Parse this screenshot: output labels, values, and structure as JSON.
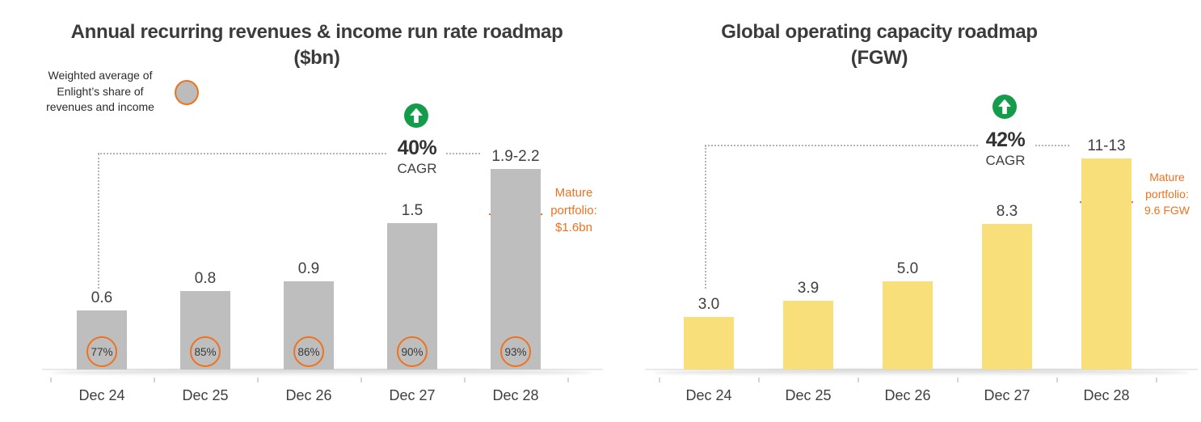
{
  "legend": {
    "lines": [
      "Weighted average of",
      "Enlight’s share of",
      "revenues and income"
    ],
    "swatch_icon": "gray-circle-orange-ring-icon"
  },
  "colors": {
    "orange": "#ee7220",
    "green": "#149c4a",
    "gray_bar": "#bebebe",
    "yellow_bar": "#f8df7a",
    "text": "#3f3f3f"
  },
  "chart_data": [
    {
      "type": "bar",
      "title": "Annual recurring revenues & income run rate roadmap",
      "subtitle": "($bn)",
      "categories": [
        "Dec 24",
        "Dec 25",
        "Dec 26",
        "Dec 27",
        "Dec 28"
      ],
      "values": [
        0.6,
        0.8,
        0.9,
        1.5,
        2.05
      ],
      "value_labels": [
        "0.6",
        "0.8",
        "0.9",
        "1.5",
        "1.9-2.2"
      ],
      "share_circles": [
        "77%",
        "85%",
        "86%",
        "90%",
        "93%"
      ],
      "bar_color": "#bebebe",
      "ylim": [
        0,
        2.3
      ],
      "grid": false,
      "cagr": {
        "value": "40%",
        "label": "CAGR",
        "icon": "green-up-arrow-icon"
      },
      "mature_portfolio": {
        "lines": [
          "Mature",
          "portfolio:",
          "$1.6bn"
        ],
        "value": 1.6
      }
    },
    {
      "type": "bar",
      "title": "Global operating capacity roadmap",
      "subtitle": "(FGW)",
      "categories": [
        "Dec 24",
        "Dec 25",
        "Dec 26",
        "Dec 27",
        "Dec 28"
      ],
      "values": [
        3.0,
        3.9,
        5.0,
        8.3,
        12.0
      ],
      "value_labels": [
        "3.0",
        "3.9",
        "5.0",
        "8.3",
        "11-13"
      ],
      "share_circles": null,
      "bar_color": "#f8df7a",
      "ylim": [
        0,
        12.8
      ],
      "grid": false,
      "cagr": {
        "value": "42%",
        "label": "CAGR",
        "icon": "green-up-arrow-icon"
      },
      "mature_portfolio": {
        "lines": [
          "Mature",
          "portfolio:",
          "9.6 FGW"
        ],
        "value": 9.6
      }
    }
  ]
}
